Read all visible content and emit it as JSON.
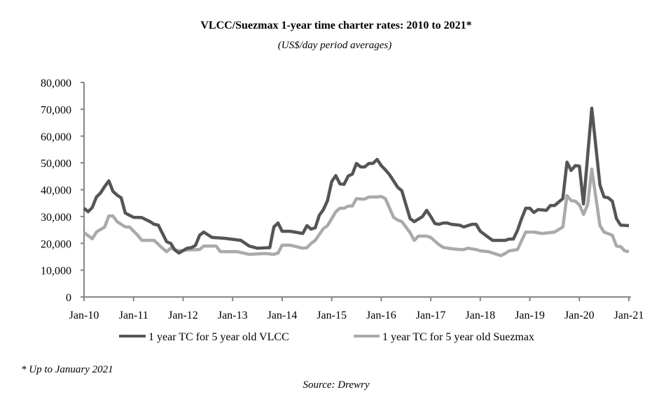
{
  "chart_data": {
    "type": "line",
    "title": "VLCC/Suezmax 1-year time charter rates: 2010 to 2021*",
    "subtitle": "(US$/day period averages)",
    "xlabel": "",
    "ylabel": "",
    "ylim": [
      0,
      80000
    ],
    "yticks": [
      "0",
      "10,000",
      "20,000",
      "30,000",
      "40,000",
      "50,000",
      "60,000",
      "70,000",
      "80,000"
    ],
    "xlim": [
      "2010-01",
      "2021-01"
    ],
    "xticks": [
      "Jan-10",
      "Jan-11",
      "Jan-12",
      "Jan-13",
      "Jan-14",
      "Jan-15",
      "Jan-16",
      "Jan-17",
      "Jan-18",
      "Jan-19",
      "Jan-20",
      "Jan-21"
    ],
    "grid": false,
    "legend_position": "bottom",
    "series": [
      {
        "name": "1 year TC for 5 year old VLCC",
        "color": "#555555",
        "points": [
          [
            "2010-01",
            33100
          ],
          [
            "2010-02",
            31800
          ],
          [
            "2010-03",
            33400
          ],
          [
            "2010-04",
            37300
          ],
          [
            "2010-05",
            38800
          ],
          [
            "2010-06",
            41200
          ],
          [
            "2010-07",
            43300
          ],
          [
            "2010-08",
            39400
          ],
          [
            "2010-09",
            38000
          ],
          [
            "2010-10",
            37000
          ],
          [
            "2010-11",
            31300
          ],
          [
            "2011-01",
            29700
          ],
          [
            "2011-03",
            29600
          ],
          [
            "2011-05",
            28100
          ],
          [
            "2011-06",
            27100
          ],
          [
            "2011-07",
            26800
          ],
          [
            "2011-09",
            20600
          ],
          [
            "2011-10",
            20000
          ],
          [
            "2011-11",
            17500
          ],
          [
            "2011-12",
            16400
          ],
          [
            "2012-02",
            18200
          ],
          [
            "2012-03",
            18400
          ],
          [
            "2012-04",
            19200
          ],
          [
            "2012-05",
            23000
          ],
          [
            "2012-06",
            24200
          ],
          [
            "2012-08",
            22200
          ],
          [
            "2012-11",
            21900
          ],
          [
            "2013-03",
            21100
          ],
          [
            "2013-05",
            19000
          ],
          [
            "2013-07",
            18200
          ],
          [
            "2013-10",
            18400
          ],
          [
            "2013-11",
            26100
          ],
          [
            "2013-12",
            27600
          ],
          [
            "2014-01",
            24500
          ],
          [
            "2014-03",
            24500
          ],
          [
            "2014-06",
            23700
          ],
          [
            "2014-07",
            26600
          ],
          [
            "2014-08",
            25300
          ],
          [
            "2014-09",
            25800
          ],
          [
            "2014-10",
            30500
          ],
          [
            "2014-11",
            32600
          ],
          [
            "2014-12",
            36000
          ],
          [
            "2015-01",
            43000
          ],
          [
            "2015-02",
            45300
          ],
          [
            "2015-03",
            42200
          ],
          [
            "2015-04",
            42000
          ],
          [
            "2015-05",
            45100
          ],
          [
            "2015-06",
            45800
          ],
          [
            "2015-07",
            49800
          ],
          [
            "2015-08",
            48500
          ],
          [
            "2015-09",
            48500
          ],
          [
            "2015-10",
            49800
          ],
          [
            "2015-11",
            49800
          ],
          [
            "2015-12",
            51300
          ],
          [
            "2016-01",
            49000
          ],
          [
            "2016-02",
            47400
          ],
          [
            "2016-03",
            45600
          ],
          [
            "2016-05",
            40900
          ],
          [
            "2016-06",
            39600
          ],
          [
            "2016-07",
            34400
          ],
          [
            "2016-08",
            29200
          ],
          [
            "2016-09",
            28100
          ],
          [
            "2016-11",
            30000
          ],
          [
            "2016-12",
            32300
          ],
          [
            "2017-01",
            30000
          ],
          [
            "2017-02",
            27400
          ],
          [
            "2017-03",
            27100
          ],
          [
            "2017-04",
            27600
          ],
          [
            "2017-05",
            27600
          ],
          [
            "2017-06",
            27100
          ],
          [
            "2017-08",
            26800
          ],
          [
            "2017-09",
            26100
          ],
          [
            "2017-11",
            27100
          ],
          [
            "2017-12",
            27100
          ],
          [
            "2018-01",
            24500
          ],
          [
            "2018-03",
            22200
          ],
          [
            "2018-04",
            21100
          ],
          [
            "2018-07",
            21100
          ],
          [
            "2018-08",
            21600
          ],
          [
            "2018-09",
            21600
          ],
          [
            "2018-10",
            24800
          ],
          [
            "2018-11",
            29200
          ],
          [
            "2018-12",
            33100
          ],
          [
            "2019-01",
            33100
          ],
          [
            "2019-02",
            31500
          ],
          [
            "2019-03",
            32600
          ],
          [
            "2019-05",
            32300
          ],
          [
            "2019-06",
            34100
          ],
          [
            "2019-07",
            34100
          ],
          [
            "2019-09",
            36700
          ],
          [
            "2019-10",
            50300
          ],
          [
            "2019-11",
            47200
          ],
          [
            "2019-12",
            49000
          ],
          [
            "2020-01",
            48800
          ],
          [
            "2020-02",
            34700
          ],
          [
            "2020-04",
            70400
          ],
          [
            "2020-06",
            41700
          ],
          [
            "2020-07",
            37300
          ],
          [
            "2020-08",
            37000
          ],
          [
            "2020-09",
            35700
          ],
          [
            "2020-10",
            29200
          ],
          [
            "2020-11",
            26800
          ],
          [
            "2021-01",
            26600
          ]
        ]
      },
      {
        "name": "1 year TC for 5 year old Suezmax",
        "color": "#aaaaaa",
        "points": [
          [
            "2010-01",
            24000
          ],
          [
            "2010-03",
            21700
          ],
          [
            "2010-04",
            24200
          ],
          [
            "2010-06",
            26100
          ],
          [
            "2010-07",
            30200
          ],
          [
            "2010-08",
            30200
          ],
          [
            "2010-09",
            28100
          ],
          [
            "2010-11",
            26100
          ],
          [
            "2010-12",
            26100
          ],
          [
            "2011-02",
            23000
          ],
          [
            "2011-03",
            21100
          ],
          [
            "2011-06",
            21100
          ],
          [
            "2011-08",
            18200
          ],
          [
            "2011-09",
            16900
          ],
          [
            "2011-10",
            18200
          ],
          [
            "2011-12",
            17200
          ],
          [
            "2012-02",
            17500
          ],
          [
            "2012-05",
            17700
          ],
          [
            "2012-06",
            19000
          ],
          [
            "2012-09",
            19000
          ],
          [
            "2012-10",
            16900
          ],
          [
            "2013-02",
            16900
          ],
          [
            "2013-05",
            15900
          ],
          [
            "2013-09",
            16200
          ],
          [
            "2013-11",
            15900
          ],
          [
            "2013-12",
            16400
          ],
          [
            "2014-01",
            19300
          ],
          [
            "2014-03",
            19300
          ],
          [
            "2014-06",
            18200
          ],
          [
            "2014-07",
            18400
          ],
          [
            "2014-08",
            20000
          ],
          [
            "2014-09",
            21100
          ],
          [
            "2014-11",
            25500
          ],
          [
            "2014-12",
            26600
          ],
          [
            "2015-02",
            31800
          ],
          [
            "2015-03",
            33100
          ],
          [
            "2015-04",
            33100
          ],
          [
            "2015-05",
            33900
          ],
          [
            "2015-06",
            33900
          ],
          [
            "2015-07",
            36700
          ],
          [
            "2015-08",
            36500
          ],
          [
            "2015-09",
            36500
          ],
          [
            "2015-10",
            37300
          ],
          [
            "2015-12",
            37300
          ],
          [
            "2016-01",
            37500
          ],
          [
            "2016-02",
            36700
          ],
          [
            "2016-04",
            29700
          ],
          [
            "2016-05",
            28700
          ],
          [
            "2016-06",
            28100
          ],
          [
            "2016-08",
            24000
          ],
          [
            "2016-09",
            21100
          ],
          [
            "2016-10",
            22700
          ],
          [
            "2016-12",
            22700
          ],
          [
            "2017-01",
            22200
          ],
          [
            "2017-03",
            19500
          ],
          [
            "2017-04",
            18500
          ],
          [
            "2017-06",
            18000
          ],
          [
            "2017-08",
            17700
          ],
          [
            "2017-09",
            17700
          ],
          [
            "2017-10",
            18200
          ],
          [
            "2017-12",
            17700
          ],
          [
            "2018-01",
            17200
          ],
          [
            "2018-03",
            16900
          ],
          [
            "2018-05",
            15900
          ],
          [
            "2018-06",
            15400
          ],
          [
            "2018-07",
            16200
          ],
          [
            "2018-08",
            17200
          ],
          [
            "2018-10",
            17700
          ],
          [
            "2018-12",
            24200
          ],
          [
            "2019-02",
            24200
          ],
          [
            "2019-04",
            23700
          ],
          [
            "2019-07",
            24200
          ],
          [
            "2019-09",
            26100
          ],
          [
            "2019-10",
            37800
          ],
          [
            "2019-11",
            36000
          ],
          [
            "2019-12",
            35700
          ],
          [
            "2020-01",
            34400
          ],
          [
            "2020-02",
            30800
          ],
          [
            "2020-03",
            34400
          ],
          [
            "2020-04",
            47700
          ],
          [
            "2020-06",
            26600
          ],
          [
            "2020-07",
            24200
          ],
          [
            "2020-09",
            23000
          ],
          [
            "2020-10",
            19000
          ],
          [
            "2020-11",
            18800
          ],
          [
            "2020-12",
            17200
          ],
          [
            "2021-01",
            16900
          ]
        ]
      }
    ],
    "footnote": "* Up to January 2021",
    "source": "Source: Drewry"
  }
}
